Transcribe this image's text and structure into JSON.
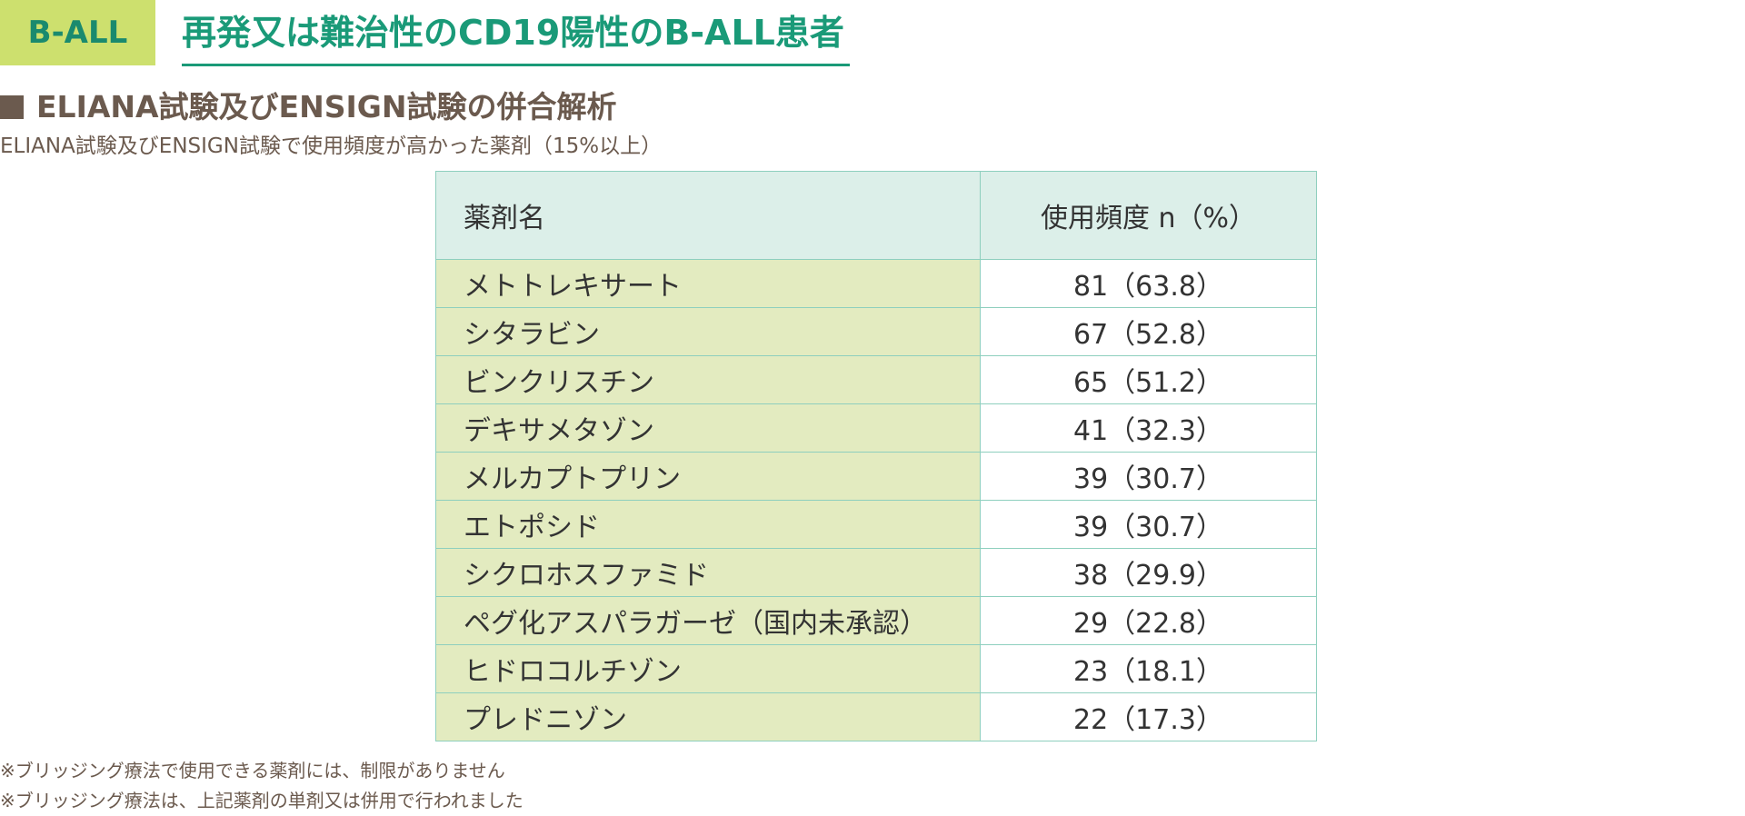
{
  "header": {
    "badge": "B-ALL",
    "title": "再発又は難治性のCD19陽性のB-ALL患者"
  },
  "section": {
    "heading": "ELIANA試験及びENSIGN試験の併合解析",
    "subtitle": "ELIANA試験及びENSIGN試験で使用頻度が高かった薬剤（15%以上）"
  },
  "table": {
    "columns": [
      "薬剤名",
      "使用頻度 n（%）"
    ],
    "rows": [
      {
        "name": "メトトレキサート",
        "freq": "81（63.8）"
      },
      {
        "name": "シタラビン",
        "freq": "67（52.8）"
      },
      {
        "name": "ビンクリスチン",
        "freq": "65（51.2）"
      },
      {
        "name": "デキサメタゾン",
        "freq": "41（32.3）"
      },
      {
        "name": "メルカプトプリン",
        "freq": "39（30.7）"
      },
      {
        "name": "エトポシド",
        "freq": "39（30.7）"
      },
      {
        "name": "シクロホスファミド",
        "freq": "38（29.9）"
      },
      {
        "name": "ペグ化アスパラガーゼ（国内未承認）",
        "freq": "29（22.8）"
      },
      {
        "name": "ヒドロコルチゾン",
        "freq": "23（18.1）"
      },
      {
        "name": "プレドニゾン",
        "freq": "22（17.3）"
      }
    ]
  },
  "footnotes": [
    "※ブリッジング療法で使用できる薬剤には、制限がありません",
    "※ブリッジング療法は、上記薬剤の単剤又は併用で行われました"
  ],
  "colors": {
    "badge_bg": "#cde06e",
    "title_green": "#1a9a78",
    "heading_brown": "#6b5a4e",
    "table_header_bg": "#dcefe9",
    "table_name_bg": "#e3ebc0",
    "table_border": "#8ecfbe"
  }
}
